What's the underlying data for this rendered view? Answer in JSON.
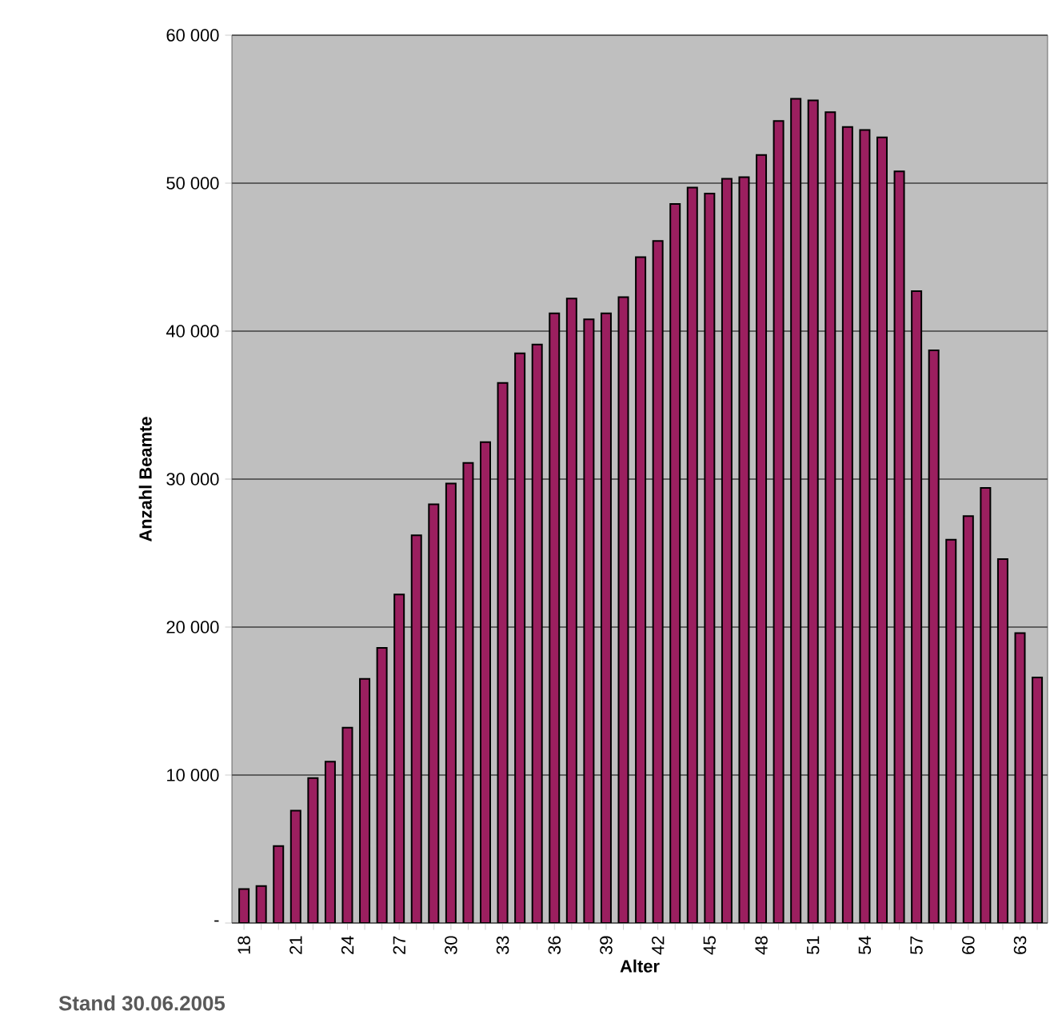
{
  "chart_data": {
    "type": "bar",
    "xlabel": "Alter",
    "ylabel": "Anzahl Beamte",
    "annotations": [
      "Stand 30.06.2005"
    ],
    "categories": [
      "18",
      null,
      null,
      "21",
      null,
      null,
      "24",
      null,
      null,
      "27",
      null,
      null,
      "30",
      null,
      null,
      "33",
      null,
      null,
      "36",
      null,
      null,
      "39",
      null,
      null,
      "42",
      null,
      null,
      "45",
      null,
      null,
      "48",
      null,
      null,
      "51",
      null,
      null,
      "54",
      null,
      null,
      "57",
      null,
      null,
      "60",
      null,
      null,
      "63",
      null
    ],
    "values": [
      2300,
      2500,
      5200,
      7600,
      9800,
      10900,
      13200,
      16500,
      18600,
      22200,
      26200,
      28300,
      29700,
      31100,
      32500,
      36500,
      38500,
      39100,
      41200,
      42200,
      40800,
      41200,
      42300,
      45000,
      46100,
      48600,
      49700,
      49300,
      50300,
      50400,
      51900,
      54200,
      55700,
      55600,
      54800,
      53800,
      53600,
      53100,
      50800,
      42700,
      38700,
      25900,
      27500,
      29400,
      24600,
      19600,
      16600
    ],
    "color": "#9b1f5f",
    "ylim": [
      0,
      60000
    ],
    "yticks": [
      {
        "value": 0,
        "label": "-"
      },
      {
        "value": 10000,
        "label": "10 000"
      },
      {
        "value": 20000,
        "label": "20 000"
      },
      {
        "value": 30000,
        "label": "30 000"
      },
      {
        "value": 40000,
        "label": "40 000"
      },
      {
        "value": 50000,
        "label": "50 000"
      },
      {
        "value": 60000,
        "label": "60 000"
      }
    ],
    "grid": "y"
  }
}
